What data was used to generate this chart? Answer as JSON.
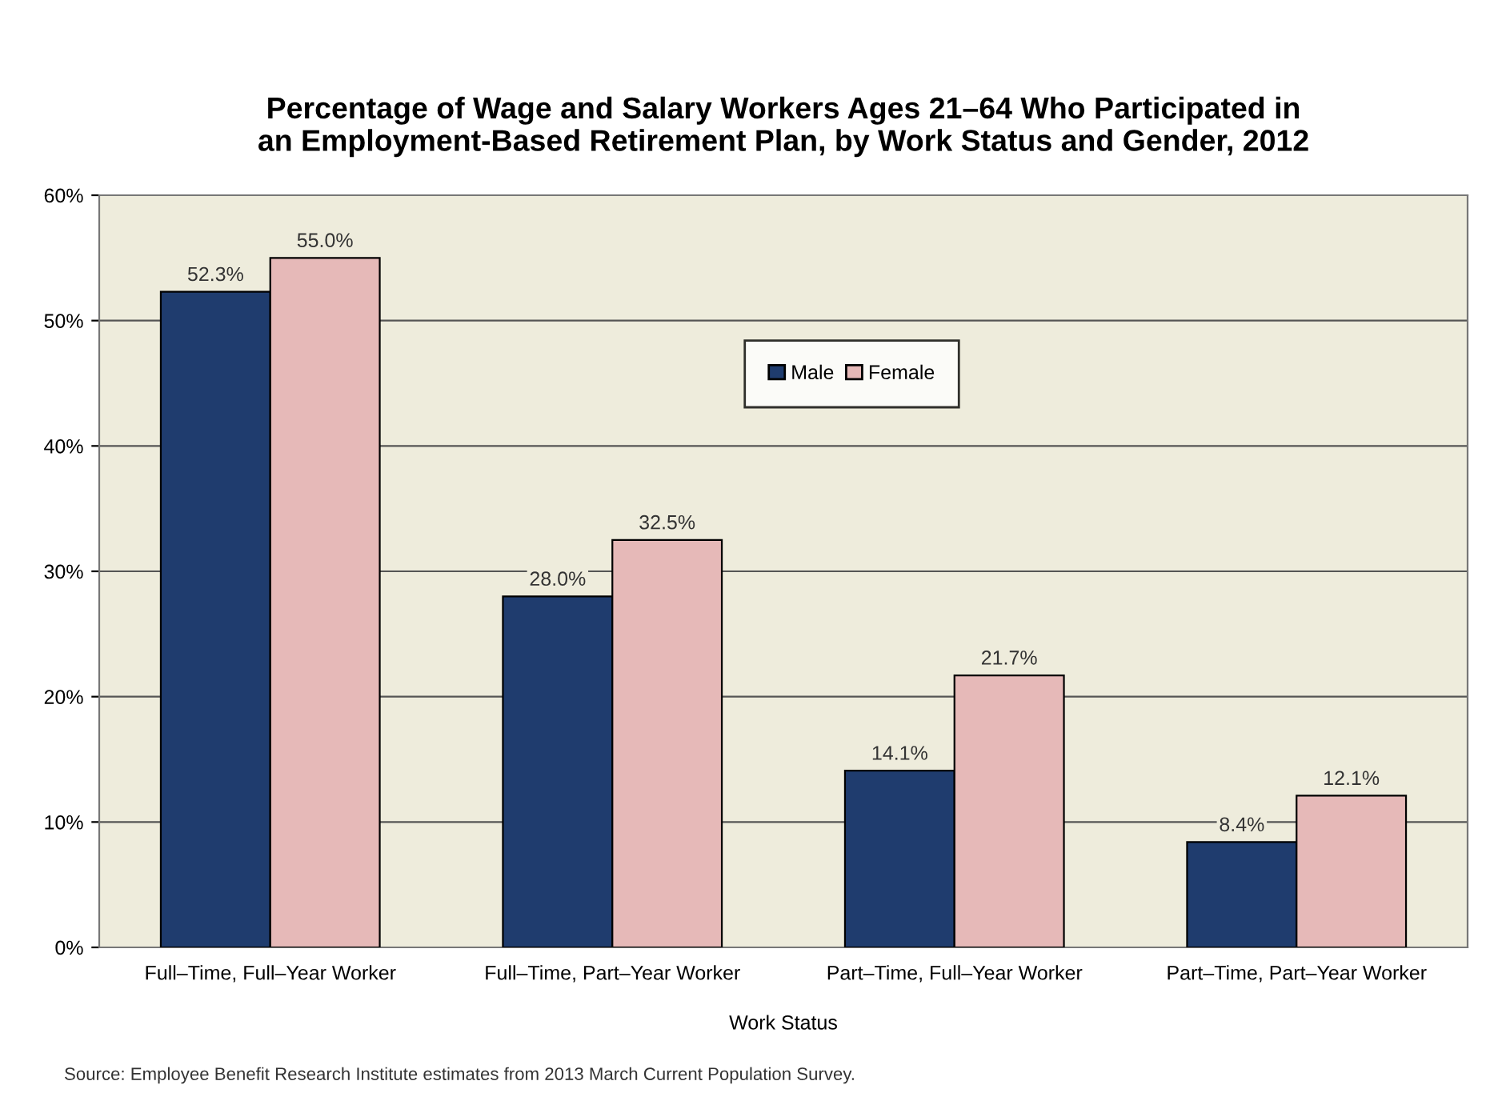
{
  "chart_data": {
    "type": "bar",
    "title": "Percentage of Wage and Salary Workers Ages 21–64 Who Participated in\nan Employment-Based Retirement Plan, by Work Status and Gender, 2012",
    "xlabel": "Work Status",
    "categories": [
      "Full–Time, Full–Year Worker",
      "Full–Time, Part–Year Worker",
      "Part–Time, Full–Year Worker",
      "Part–Time, Part–Year Worker"
    ],
    "series": [
      {
        "name": "Male",
        "color": "#1f3c6e",
        "values": [
          52.3,
          28.0,
          14.1,
          8.4
        ],
        "value_labels": [
          "52.3%",
          "28.0%",
          "14.1%",
          "8.4%"
        ]
      },
      {
        "name": "Female",
        "color": "#e6b9b8",
        "values": [
          55.0,
          32.5,
          21.7,
          12.1
        ],
        "value_labels": [
          "55.0%",
          "32.5%",
          "21.7%",
          "12.1%"
        ]
      }
    ],
    "ylim": [
      0,
      60
    ],
    "yticks": [
      {
        "value": 0,
        "label": "0%"
      },
      {
        "value": 10,
        "label": "10%"
      },
      {
        "value": 20,
        "label": "20%"
      },
      {
        "value": 30,
        "label": "30%"
      },
      {
        "value": 40,
        "label": "40%"
      },
      {
        "value": 50,
        "label": "50%"
      },
      {
        "value": 60,
        "label": "60%"
      }
    ],
    "grid": "y",
    "legend": "top",
    "annotations": [
      "Source: Employee Benefit Research Institute estimates from 2013 March Current Population Survey."
    ]
  }
}
